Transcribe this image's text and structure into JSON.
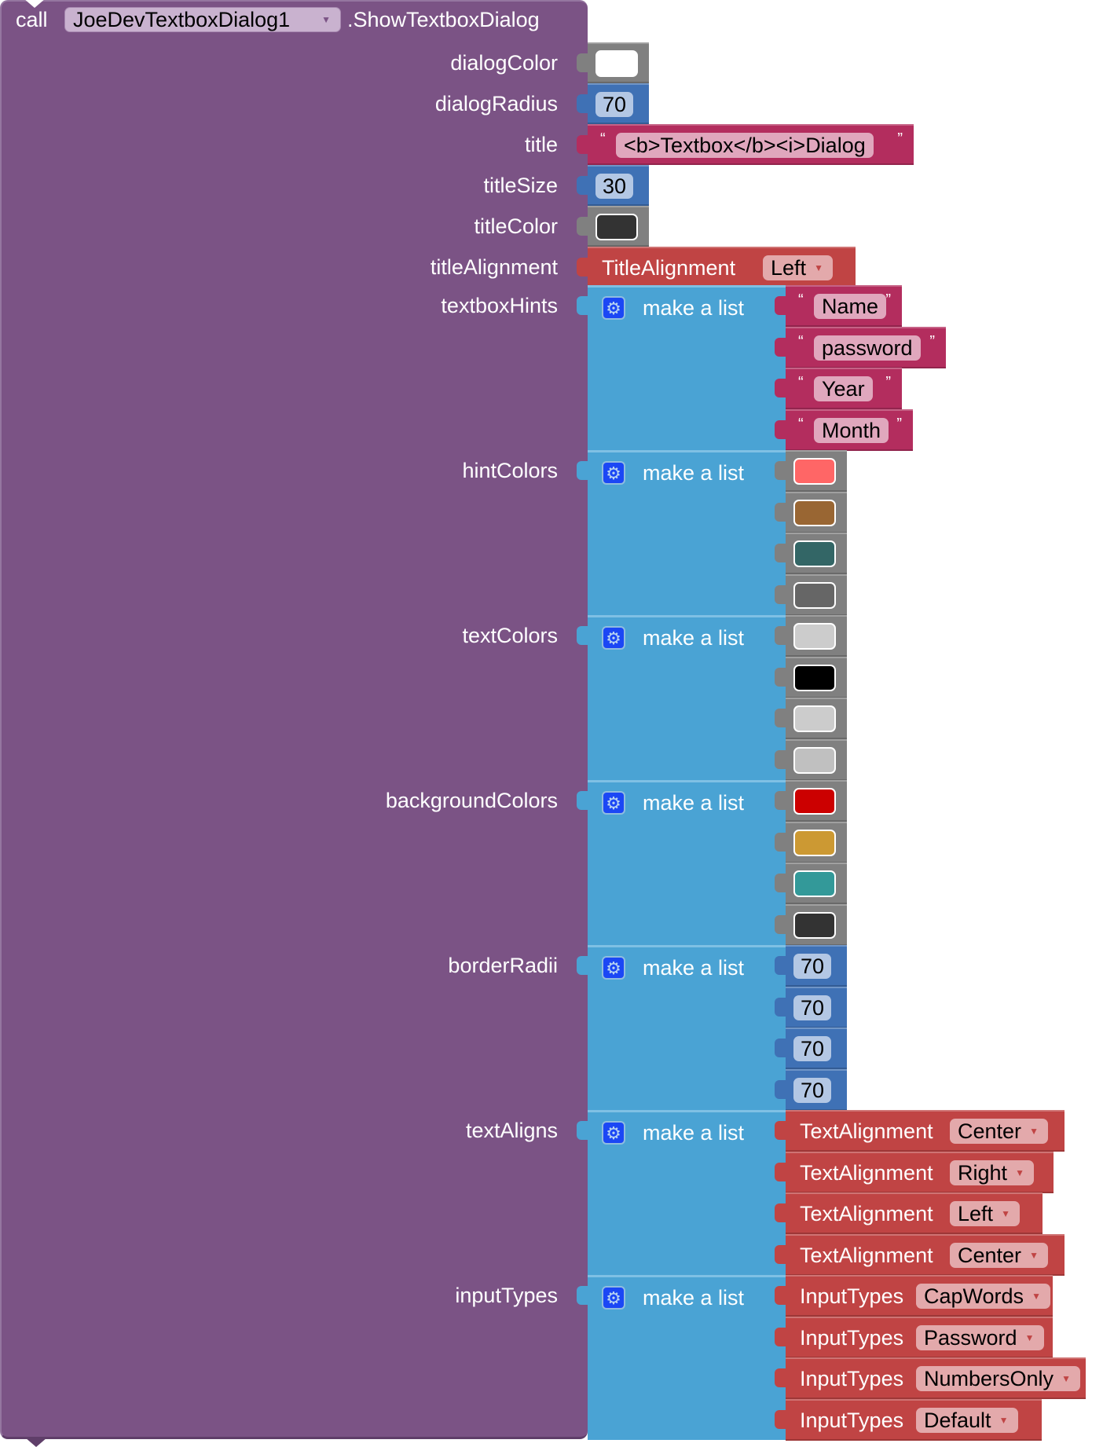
{
  "block": {
    "call_word": "call",
    "component": "JoeDevTextboxDialog1",
    "method": ".ShowTextboxDialog",
    "colors": {
      "procedure": "#7B5385",
      "list": "#4AA3D4",
      "color_block": "#808080",
      "math": "#3F71B5",
      "text": "#B32D5E",
      "enum": "#C04444"
    }
  },
  "params": {
    "dialogColor": {
      "label": "dialogColor",
      "value": "#FFFFFF"
    },
    "dialogRadius": {
      "label": "dialogRadius",
      "value": "70"
    },
    "title": {
      "label": "title",
      "value": "<b>Textbox</b><i>Dialog",
      "open_quote": "“",
      "close_quote": "”"
    },
    "titleSize": {
      "label": "titleSize",
      "value": "30"
    },
    "titleColor": {
      "label": "titleColor",
      "value": "#333333"
    },
    "titleAlignment": {
      "label": "titleAlignment",
      "enum": "TitleAlignment",
      "value": "Left"
    },
    "textboxHints": {
      "label": "textboxHints",
      "list_label": "make a list",
      "items": [
        "Name",
        "password",
        "Year",
        "Month"
      ]
    },
    "hintColors": {
      "label": "hintColors",
      "list_label": "make a list",
      "items": [
        "#FF6666",
        "#996633",
        "#336666",
        "#666666"
      ]
    },
    "textColors": {
      "label": "textColors",
      "list_label": "make a list",
      "items": [
        "#CCCCCC",
        "#000000",
        "#CCCCCC",
        "#C0C0C0"
      ]
    },
    "backgroundColors": {
      "label": "backgroundColors",
      "list_label": "make a list",
      "items": [
        "#CC0000",
        "#CC9933",
        "#339999",
        "#333333"
      ]
    },
    "borderRadii": {
      "label": "borderRadii",
      "list_label": "make a list",
      "items": [
        "70",
        "70",
        "70",
        "70"
      ]
    },
    "textAligns": {
      "label": "textAligns",
      "list_label": "make a list",
      "enum": "TextAlignment",
      "items": [
        "Center",
        "Right",
        "Left",
        "Center"
      ]
    },
    "inputTypes": {
      "label": "inputTypes",
      "list_label": "make a list",
      "enum": "InputTypes",
      "items": [
        "CapWords",
        "Password",
        "NumbersOnly",
        "Default"
      ]
    }
  }
}
